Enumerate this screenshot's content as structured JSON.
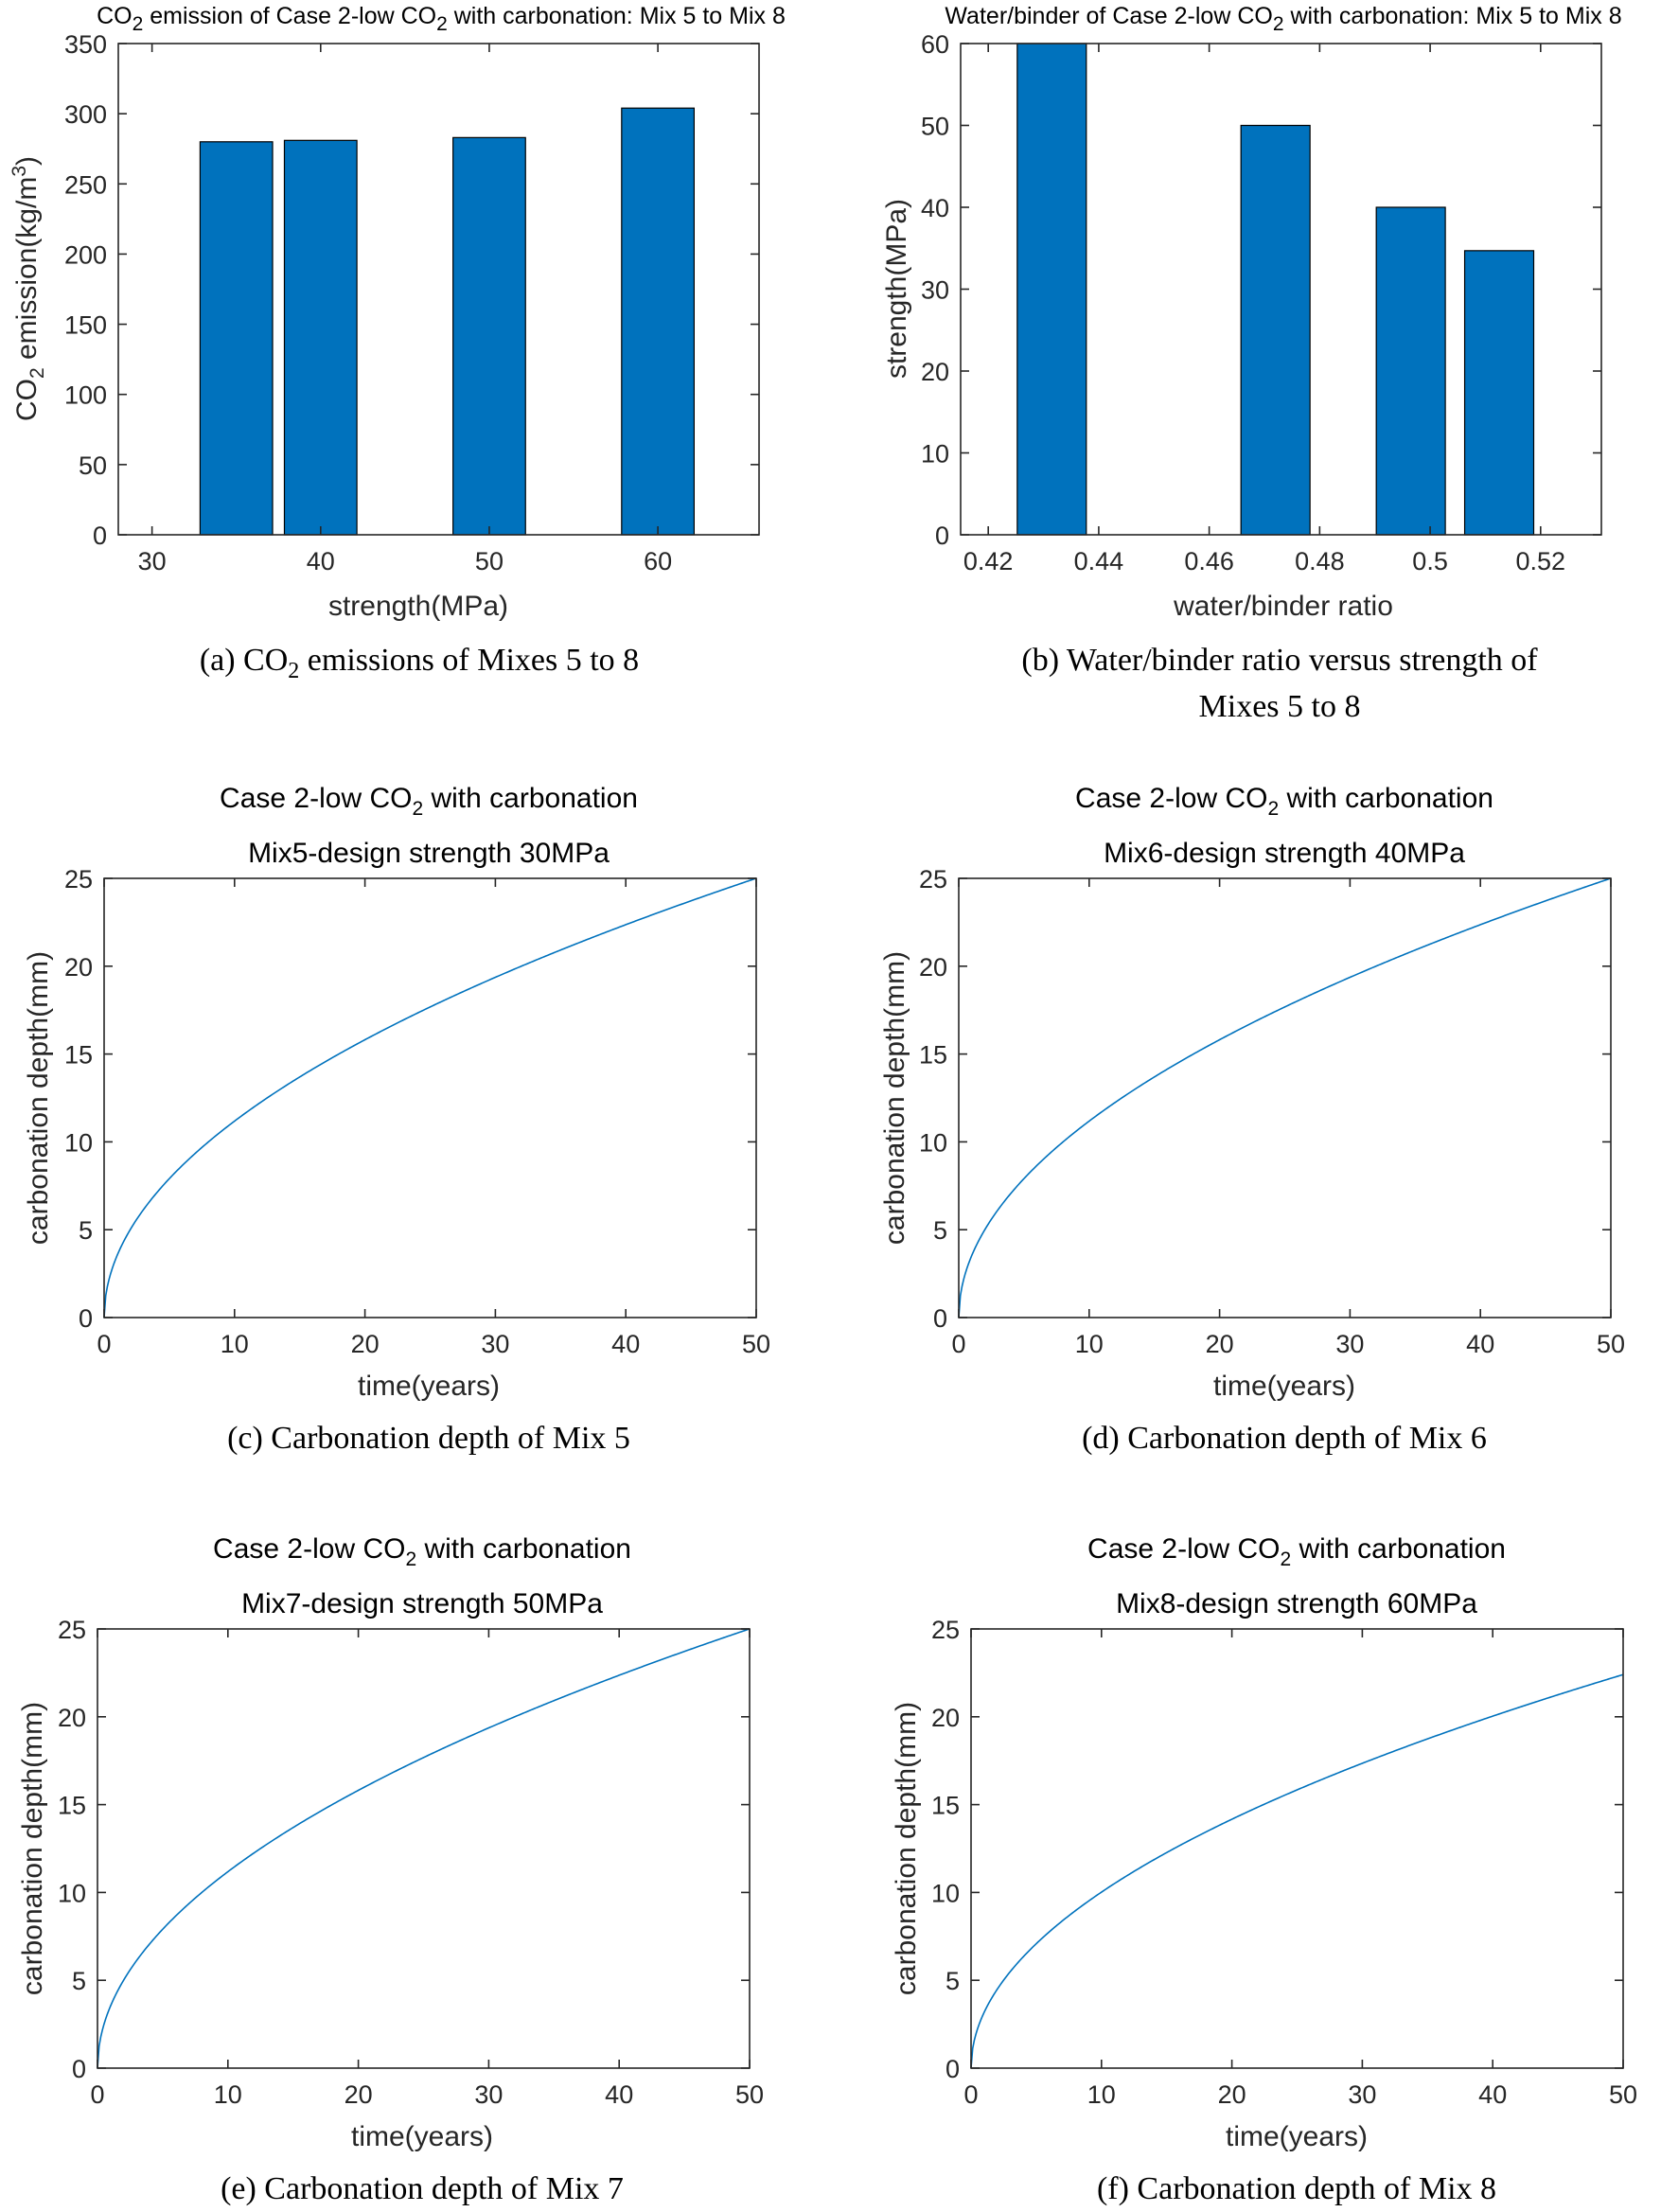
{
  "figure": {
    "panels": [
      {
        "caption_main": "(a) CO",
        "caption_sub": "2",
        "caption_rest": " emissions of Mixes 5 to 8"
      },
      {
        "caption_line1": "(b) Water/binder ratio versus strength of",
        "caption_line2": "Mixes 5 to 8"
      },
      {
        "caption": "(c) Carbonation depth of Mix 5"
      },
      {
        "caption": "(d) Carbonation depth of Mix 6"
      },
      {
        "caption": "(e) Carbonation depth of Mix 7"
      },
      {
        "caption": "(f) Carbonation depth of Mix 8"
      }
    ]
  },
  "chart_data": [
    {
      "id": "a",
      "type": "bar",
      "title_pre": "CO",
      "title_sub": "2",
      "title_post": " emission of Case 2-low CO",
      "title_sub2": "2",
      "title_post2": " with carbonation: Mix 5 to Mix 8",
      "x": [
        35,
        40,
        50,
        60
      ],
      "values": [
        280,
        281,
        283,
        304
      ],
      "bar_width": 4.3,
      "xlim": [
        28,
        66
      ],
      "ylim": [
        0,
        350
      ],
      "xticks": [
        30,
        40,
        50,
        60
      ],
      "yticks": [
        0,
        50,
        100,
        150,
        200,
        250,
        300,
        350
      ],
      "xlabel": "strength(MPa)",
      "ylabel_pre": "CO",
      "ylabel_sub": "2",
      "ylabel_post": " emission(kg/m",
      "ylabel_sup": "3",
      "ylabel_end": ")",
      "color": "#0072BD"
    },
    {
      "id": "b",
      "type": "bar",
      "title_pre": "Water/binder of Case 2-low CO",
      "title_sub": "2",
      "title_post": " with carbonation: Mix 5 to Mix 8",
      "x": [
        0.4315,
        0.472,
        0.4965,
        0.5125
      ],
      "values": [
        60,
        50,
        40,
        34.7
      ],
      "bar_width": 0.0125,
      "xlim": [
        0.415,
        0.531
      ],
      "ylim": [
        0,
        60
      ],
      "xticks": [
        0.42,
        0.44,
        0.46,
        0.48,
        0.5,
        0.52
      ],
      "xtick_labels": [
        "0.42",
        "0.44",
        "0.46",
        "0.48",
        "0.5",
        "0.52"
      ],
      "yticks": [
        0,
        10,
        20,
        30,
        40,
        50,
        60
      ],
      "xlabel": "water/binder ratio",
      "ylabel": "strength(MPa)",
      "color": "#0072BD"
    },
    {
      "id": "c",
      "type": "line",
      "title1_pre": "Case 2-low CO",
      "title1_sub": "2",
      "title1_post": " with carbonation",
      "title2": "Mix5-design strength 30MPa",
      "series": [
        {
          "name": "carbonation depth",
          "k": 3.536,
          "x_range": [
            0,
            50
          ]
        }
      ],
      "xlim": [
        0,
        50
      ],
      "ylim": [
        0,
        25
      ],
      "xticks": [
        0,
        10,
        20,
        30,
        40,
        50
      ],
      "yticks": [
        0,
        5,
        10,
        15,
        20,
        25
      ],
      "xlabel": "time(years)",
      "ylabel": "carbonation depth(mm)",
      "color": "#0072BD"
    },
    {
      "id": "d",
      "type": "line",
      "title1_pre": "Case 2-low CO",
      "title1_sub": "2",
      "title1_post": " with carbonation",
      "title2": "Mix6-design strength 40MPa",
      "series": [
        {
          "name": "carbonation depth",
          "k": 3.536,
          "x_range": [
            0,
            50
          ]
        }
      ],
      "xlim": [
        0,
        50
      ],
      "ylim": [
        0,
        25
      ],
      "xticks": [
        0,
        10,
        20,
        30,
        40,
        50
      ],
      "yticks": [
        0,
        5,
        10,
        15,
        20,
        25
      ],
      "xlabel": "time(years)",
      "ylabel": "carbonation depth(mm)",
      "color": "#0072BD"
    },
    {
      "id": "e",
      "type": "line",
      "title1_pre": "Case 2-low CO",
      "title1_sub": "2",
      "title1_post": " with carbonation",
      "title2": "Mix7-design strength 50MPa",
      "series": [
        {
          "name": "carbonation depth",
          "k": 3.536,
          "x_range": [
            0,
            50
          ]
        }
      ],
      "xlim": [
        0,
        50
      ],
      "ylim": [
        0,
        25
      ],
      "xticks": [
        0,
        10,
        20,
        30,
        40,
        50
      ],
      "yticks": [
        0,
        5,
        10,
        15,
        20,
        25
      ],
      "xlabel": "time(years)",
      "ylabel": "carbonation depth(mm)",
      "color": "#0072BD"
    },
    {
      "id": "f",
      "type": "line",
      "title1_pre": "Case 2-low CO",
      "title1_sub": "2",
      "title1_post": " with carbonation",
      "title2": "Mix8-design strength 60MPa",
      "series": [
        {
          "name": "carbonation depth",
          "k": 3.168,
          "x_range": [
            0,
            50
          ]
        }
      ],
      "xlim": [
        0,
        50
      ],
      "ylim": [
        0,
        25
      ],
      "xticks": [
        0,
        10,
        20,
        30,
        40,
        50
      ],
      "yticks": [
        0,
        5,
        10,
        15,
        20,
        25
      ],
      "xlabel": "time(years)",
      "ylabel": "carbonation depth(mm)",
      "color": "#0072BD"
    }
  ]
}
